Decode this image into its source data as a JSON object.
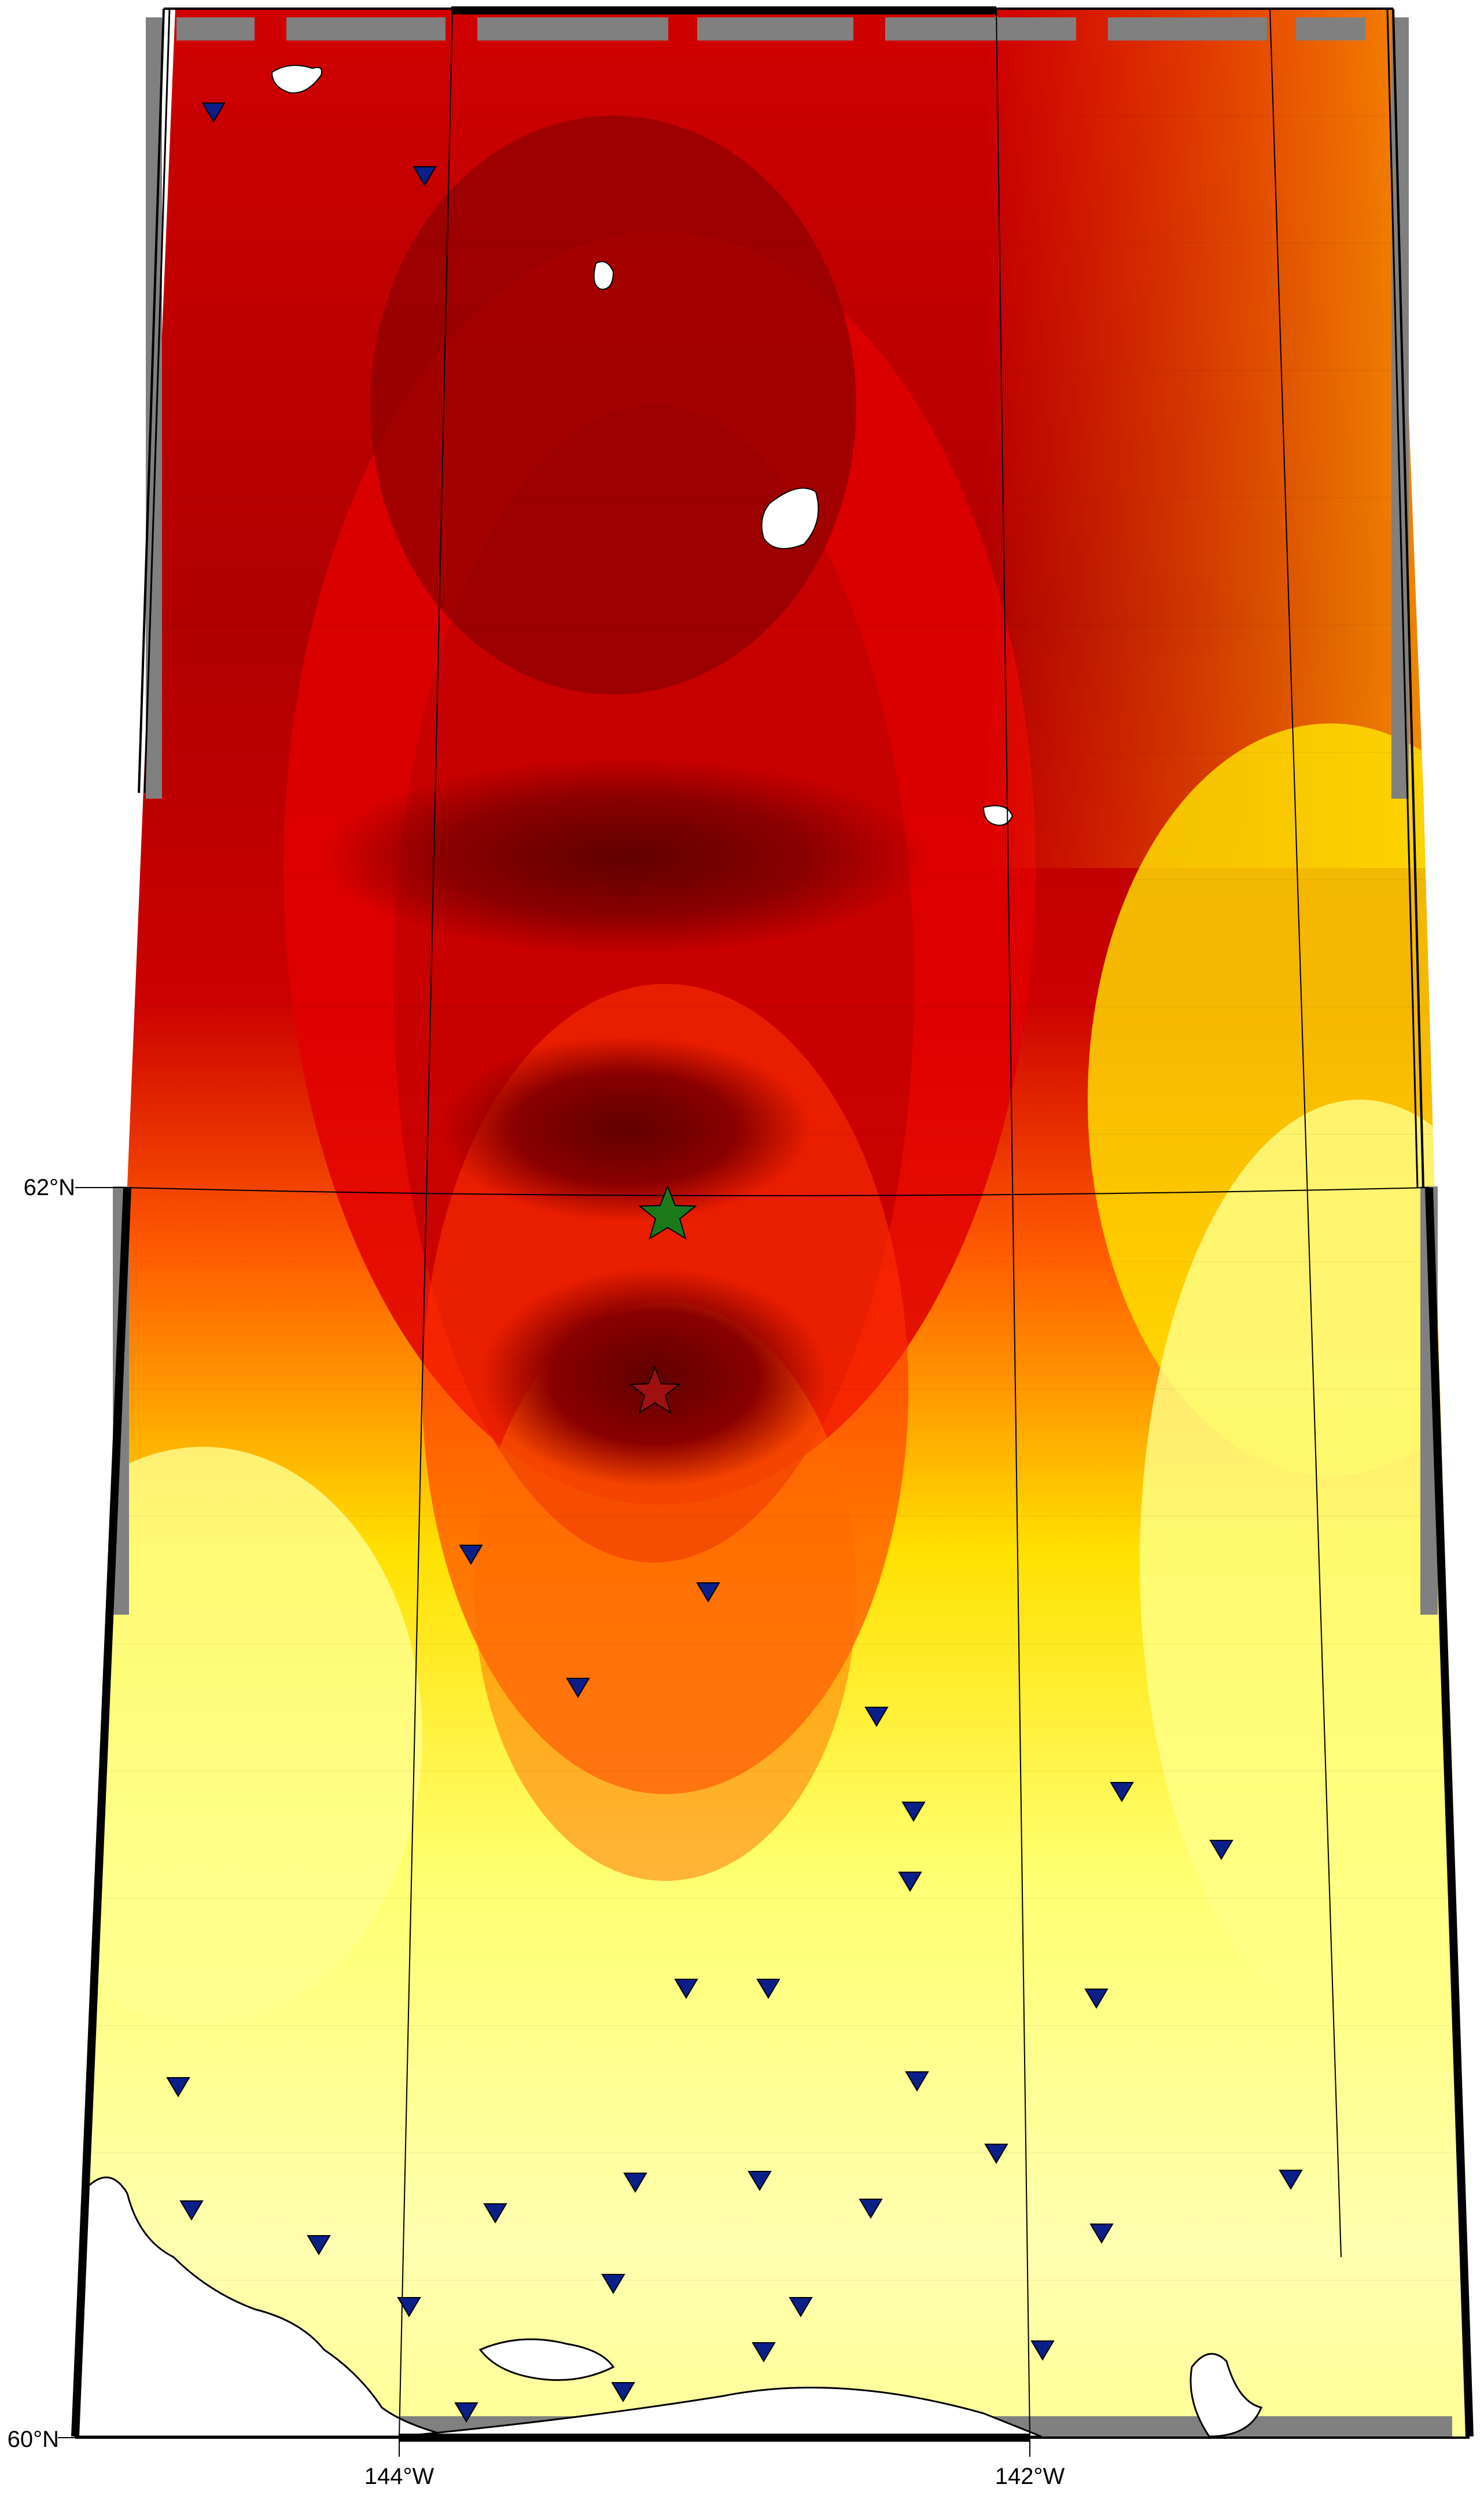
{
  "map": {
    "latitude_labels": [
      "62°N",
      "60°N"
    ],
    "longitude_labels": [
      "144°W",
      "142°W"
    ],
    "colors": {
      "max": "#6b0000",
      "high": "#9a0000",
      "mid_high": "#d80000",
      "mid": "#ff2a00",
      "orange": "#ff8c00",
      "yellow": "#ffe800",
      "light_yellow": "#ffff80",
      "pale": "#ffffd0",
      "no_data": "#808080",
      "water": "#ffffff",
      "station": "#0a1f8a",
      "epicenter_green": "#1a7a1a",
      "epicenter_red": "#a01010"
    },
    "symbols": {
      "station_icon": "inverted-triangle-icon",
      "primary_epicenter_icon": "green-star-icon",
      "secondary_epicenter_icon": "red-star-icon"
    }
  }
}
